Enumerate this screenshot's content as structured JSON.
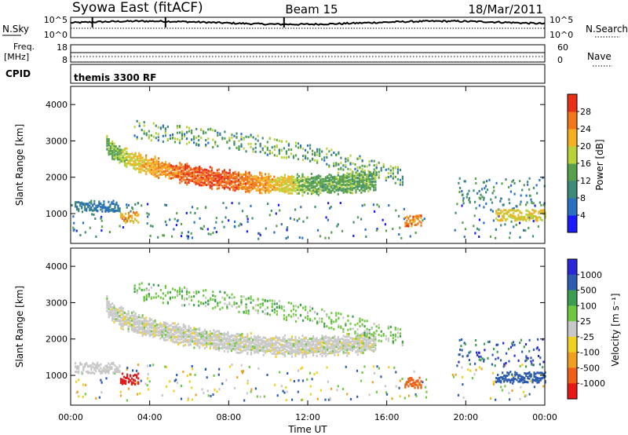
{
  "header": {
    "station": "Syowa East (fitACF)",
    "beam": "Beam 15",
    "date": "18/Mar/2011"
  },
  "noise_panel": {
    "left_label": "N.Sky",
    "right_label": "N.Search",
    "left_ticks": [
      "10^5",
      "10^0"
    ],
    "right_ticks": [
      "10^5",
      "10^0"
    ]
  },
  "freq_panel": {
    "left_label_line1": "Freq.",
    "left_label_line2": "[MHz]",
    "right_label": "Nave",
    "left_ticks": [
      "18",
      "8"
    ],
    "right_ticks": [
      "60",
      "0"
    ]
  },
  "cpid": {
    "label": "CPID",
    "value": "themis 3300 RF"
  },
  "colors": {
    "power": [
      "#1a1aff",
      "#2a6fc0",
      "#3d8a78",
      "#56a04c",
      "#b9d23a",
      "#f4b020",
      "#f07818",
      "#e83018"
    ],
    "velocity": [
      "#2828d8",
      "#2c5bb0",
      "#3c9c50",
      "#70c840",
      "#c8c8c8",
      "#f0d020",
      "#f0a020",
      "#f06018",
      "#e81818"
    ]
  },
  "chart_data": [
    {
      "type": "heatmap",
      "name": "power",
      "ylabel": "Slant Range [km]",
      "ylim": [
        180,
        4500
      ],
      "yticks": [
        1000,
        2000,
        3000,
        4000
      ],
      "xlim": [
        0,
        24
      ],
      "colorbar": {
        "label": "Power [dB]",
        "ticks": [
          "4",
          "8",
          "12",
          "16",
          "20",
          "24",
          "28"
        ],
        "range": [
          0,
          32
        ]
      },
      "features": [
        {
          "t_start": 1.8,
          "t_end": 15.4,
          "range_start_km": 3000,
          "range_min_km": 1350,
          "level_db": 24
        },
        {
          "t_start": 3.2,
          "t_end": 16.8,
          "range_start_km": 3300,
          "range_end_km": 2000,
          "level_db": 14
        },
        {
          "t_start": 0.2,
          "t_end": 2.5,
          "range_km": 1200,
          "level_db": 8
        },
        {
          "t_start": 16.9,
          "t_end": 17.7,
          "range_km": 800,
          "level_db": 26
        },
        {
          "t_start": 21.5,
          "t_end": 24.0,
          "range_km": 950,
          "level_db": 20
        }
      ]
    },
    {
      "type": "heatmap",
      "name": "velocity",
      "ylabel": "Slant Range [km]",
      "xlabel": "Time UT",
      "ylim": [
        180,
        4500
      ],
      "yticks": [
        1000,
        2000,
        3000,
        4000
      ],
      "xlim": [
        0,
        24
      ],
      "xticks": [
        "00:00",
        "04:00",
        "08:00",
        "12:00",
        "16:00",
        "20:00",
        "00:00"
      ],
      "colorbar": {
        "label": "Velocity [m s^-1]",
        "ticks": [
          "1000",
          "500",
          "100",
          "25",
          "-25",
          "-100",
          "-500",
          "-1000"
        ]
      },
      "features": [
        {
          "t_start": 1.8,
          "t_end": 15.4,
          "range_start_km": 3000,
          "range_min_km": 1350,
          "velocity_class": "-25 to 25"
        },
        {
          "t_start": 3.2,
          "t_end": 16.8,
          "range_start_km": 3300,
          "range_end_km": 2000,
          "velocity_class": "25 to 100"
        },
        {
          "t_start": 2.5,
          "t_end": 3.4,
          "range_km": 900,
          "velocity_class": "-500 to -1000"
        },
        {
          "t_start": 16.9,
          "t_end": 17.7,
          "range_km": 800,
          "velocity_class": "-100 to -500"
        },
        {
          "t_start": 21.5,
          "t_end": 24.0,
          "range_km": 950,
          "velocity_class": "500 to 1000"
        }
      ]
    }
  ]
}
